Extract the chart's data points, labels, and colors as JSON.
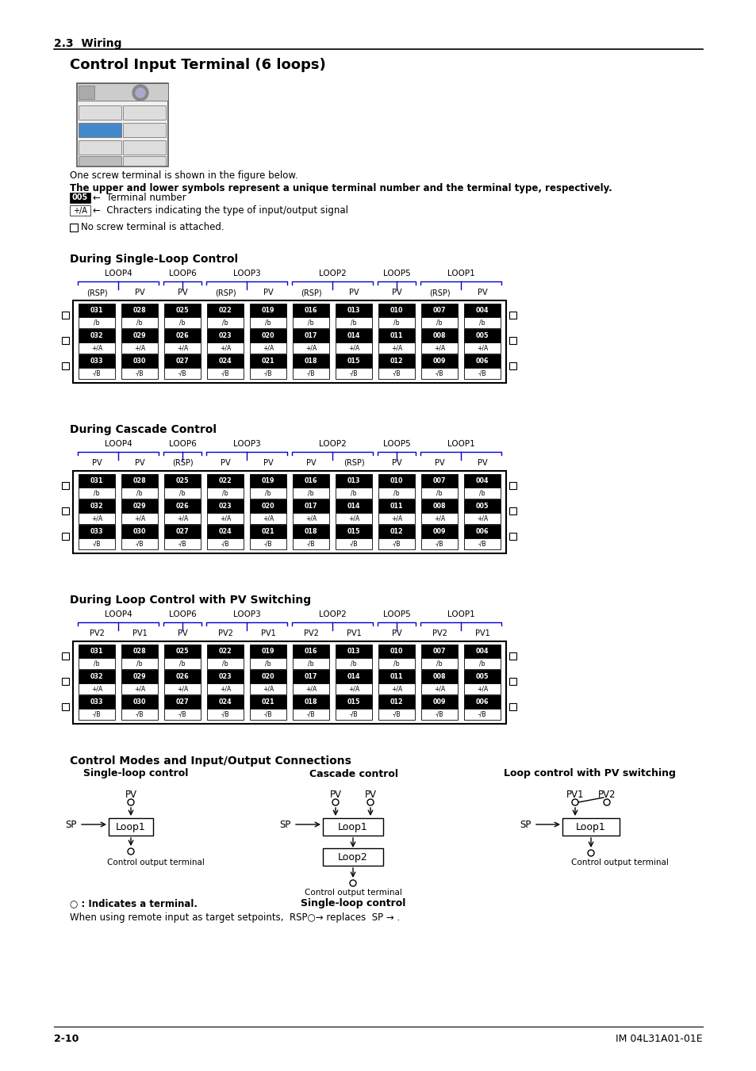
{
  "title_section": "2.3  Wiring",
  "main_title": "Control Input Terminal (6 loops)",
  "desc1": "One screw terminal is shown in the figure below.",
  "desc2": "The upper and lower symbols represent a unique terminal number and the terminal type, respectively.",
  "label_terminal_text": "←  Terminal number",
  "label_type_text": "←  Chracters indicating the type of input/output signal",
  "single_loop_title": "During Single-Loop Control",
  "cascade_title": "During Cascade Control",
  "pv_switch_title": "During Loop Control with PV Switching",
  "control_modes_title": "Control Modes and Input/Output Connections",
  "single_loop_sub": "Single-loop control",
  "cascade_sub": "Cascade control",
  "pv_switch_sub": "Loop control with PV switching",
  "footer_left": "2-10",
  "footer_right": "IM 04L31A01-01E",
  "single_headers": [
    "(RSP)",
    "PV",
    "PV",
    "(RSP)",
    "PV",
    "(RSP)",
    "PV",
    "PV",
    "(RSP)",
    "PV"
  ],
  "cascade_headers": [
    "PV",
    "PV",
    "(RSP)",
    "PV",
    "PV",
    "PV",
    "(RSP)",
    "PV",
    "PV",
    "PV"
  ],
  "pv_headers": [
    "PV2",
    "PV1",
    "PV",
    "PV2",
    "PV1",
    "PV2",
    "PV1",
    "PV",
    "PV2",
    "PV1"
  ],
  "loop_labels": [
    "LOOP4",
    "LOOP6",
    "LOOP3",
    "LOOP2",
    "LOOP5",
    "LOOP1"
  ],
  "loop_spans": [
    [
      0,
      1
    ],
    [
      2
    ],
    [
      3,
      4
    ],
    [
      5,
      6
    ],
    [
      7
    ],
    [
      8,
      9
    ]
  ],
  "terminal_rows": [
    [
      "031",
      "028",
      "025",
      "022",
      "019",
      "016",
      "013",
      "010",
      "007",
      "004"
    ],
    [
      "032",
      "029",
      "026",
      "023",
      "020",
      "017",
      "014",
      "011",
      "008",
      "005"
    ],
    [
      "033",
      "030",
      "027",
      "024",
      "021",
      "018",
      "015",
      "012",
      "009",
      "006"
    ]
  ],
  "terminal_types_row1": [
    "/b",
    "/b",
    "/b",
    "/b",
    "/b",
    "/b",
    "/b",
    "/b",
    "/b",
    "/b"
  ],
  "terminal_types_row2": [
    "+/A",
    "+/A",
    "+/A",
    "+/A",
    "+/A",
    "+/A",
    "+/A",
    "+/A",
    "+/A",
    "+/A"
  ],
  "terminal_types_row3": [
    "-/B",
    "-/B",
    "-/B",
    "-/B",
    "-/B",
    "-/B",
    "-/B",
    "-/B",
    "-/B",
    "-/B"
  ],
  "note_circle": "○ : Indicates a terminal.",
  "note_rsp": "When using remote input as target setpoints,  RSP○→ replaces  SP → ."
}
